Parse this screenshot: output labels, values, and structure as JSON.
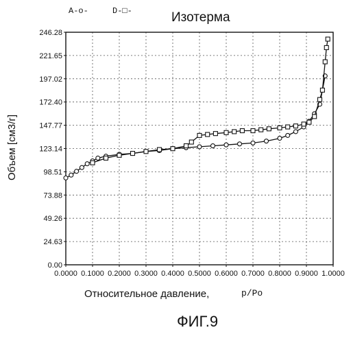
{
  "chart_data": {
    "type": "line",
    "title": "Изотерма",
    "xlabel": "Относительное давление,",
    "xlabel_suffix": "p/Po",
    "ylabel": "Объем [см3/г]",
    "xlim": [
      0,
      1
    ],
    "ylim": [
      0,
      246.28
    ],
    "grid": true,
    "legend_position": "top-left",
    "x_ticks": [
      "0.0000",
      "0.1000",
      "0.2000",
      "0.3000",
      "0.4000",
      "0.5000",
      "0.6000",
      "0.7000",
      "0.8000",
      "0.9000",
      "1.0000"
    ],
    "y_ticks": [
      "0.00",
      "24.63",
      "49.26",
      "73.88",
      "98.51",
      "123.14",
      "147.77",
      "172.40",
      "197.02",
      "221.65",
      "246.28"
    ],
    "series": [
      {
        "name": "A",
        "legend_label": "A-o-",
        "marker": "circle",
        "x": [
          0.0,
          0.02,
          0.04,
          0.06,
          0.08,
          0.1,
          0.12,
          0.15,
          0.2,
          0.25,
          0.3,
          0.35,
          0.4,
          0.45,
          0.5,
          0.55,
          0.6,
          0.65,
          0.7,
          0.75,
          0.8,
          0.83,
          0.86,
          0.89,
          0.91,
          0.93,
          0.95,
          0.97
        ],
        "y": [
          92,
          95,
          99,
          103,
          107,
          110,
          113,
          115,
          117,
          118,
          120,
          121,
          123,
          124,
          125,
          126,
          127,
          128,
          129,
          131,
          134,
          137,
          141,
          146,
          152,
          160,
          170,
          200
        ]
      },
      {
        "name": "D",
        "legend_label": "D-□-",
        "marker": "square",
        "x": [
          0.1,
          0.15,
          0.2,
          0.25,
          0.3,
          0.35,
          0.4,
          0.45,
          0.47,
          0.5,
          0.53,
          0.56,
          0.6,
          0.63,
          0.66,
          0.7,
          0.73,
          0.76,
          0.8,
          0.83,
          0.86,
          0.89,
          0.91,
          0.93,
          0.95,
          0.96,
          0.97,
          0.975,
          0.98
        ],
        "y": [
          108,
          113,
          116,
          118,
          120,
          122,
          123,
          126,
          130,
          137,
          138,
          139,
          140,
          141,
          142,
          142,
          143,
          144,
          145,
          146,
          147,
          149,
          151,
          157,
          175,
          185,
          215,
          230,
          239
        ]
      }
    ]
  },
  "caption": "ФИГ.9"
}
